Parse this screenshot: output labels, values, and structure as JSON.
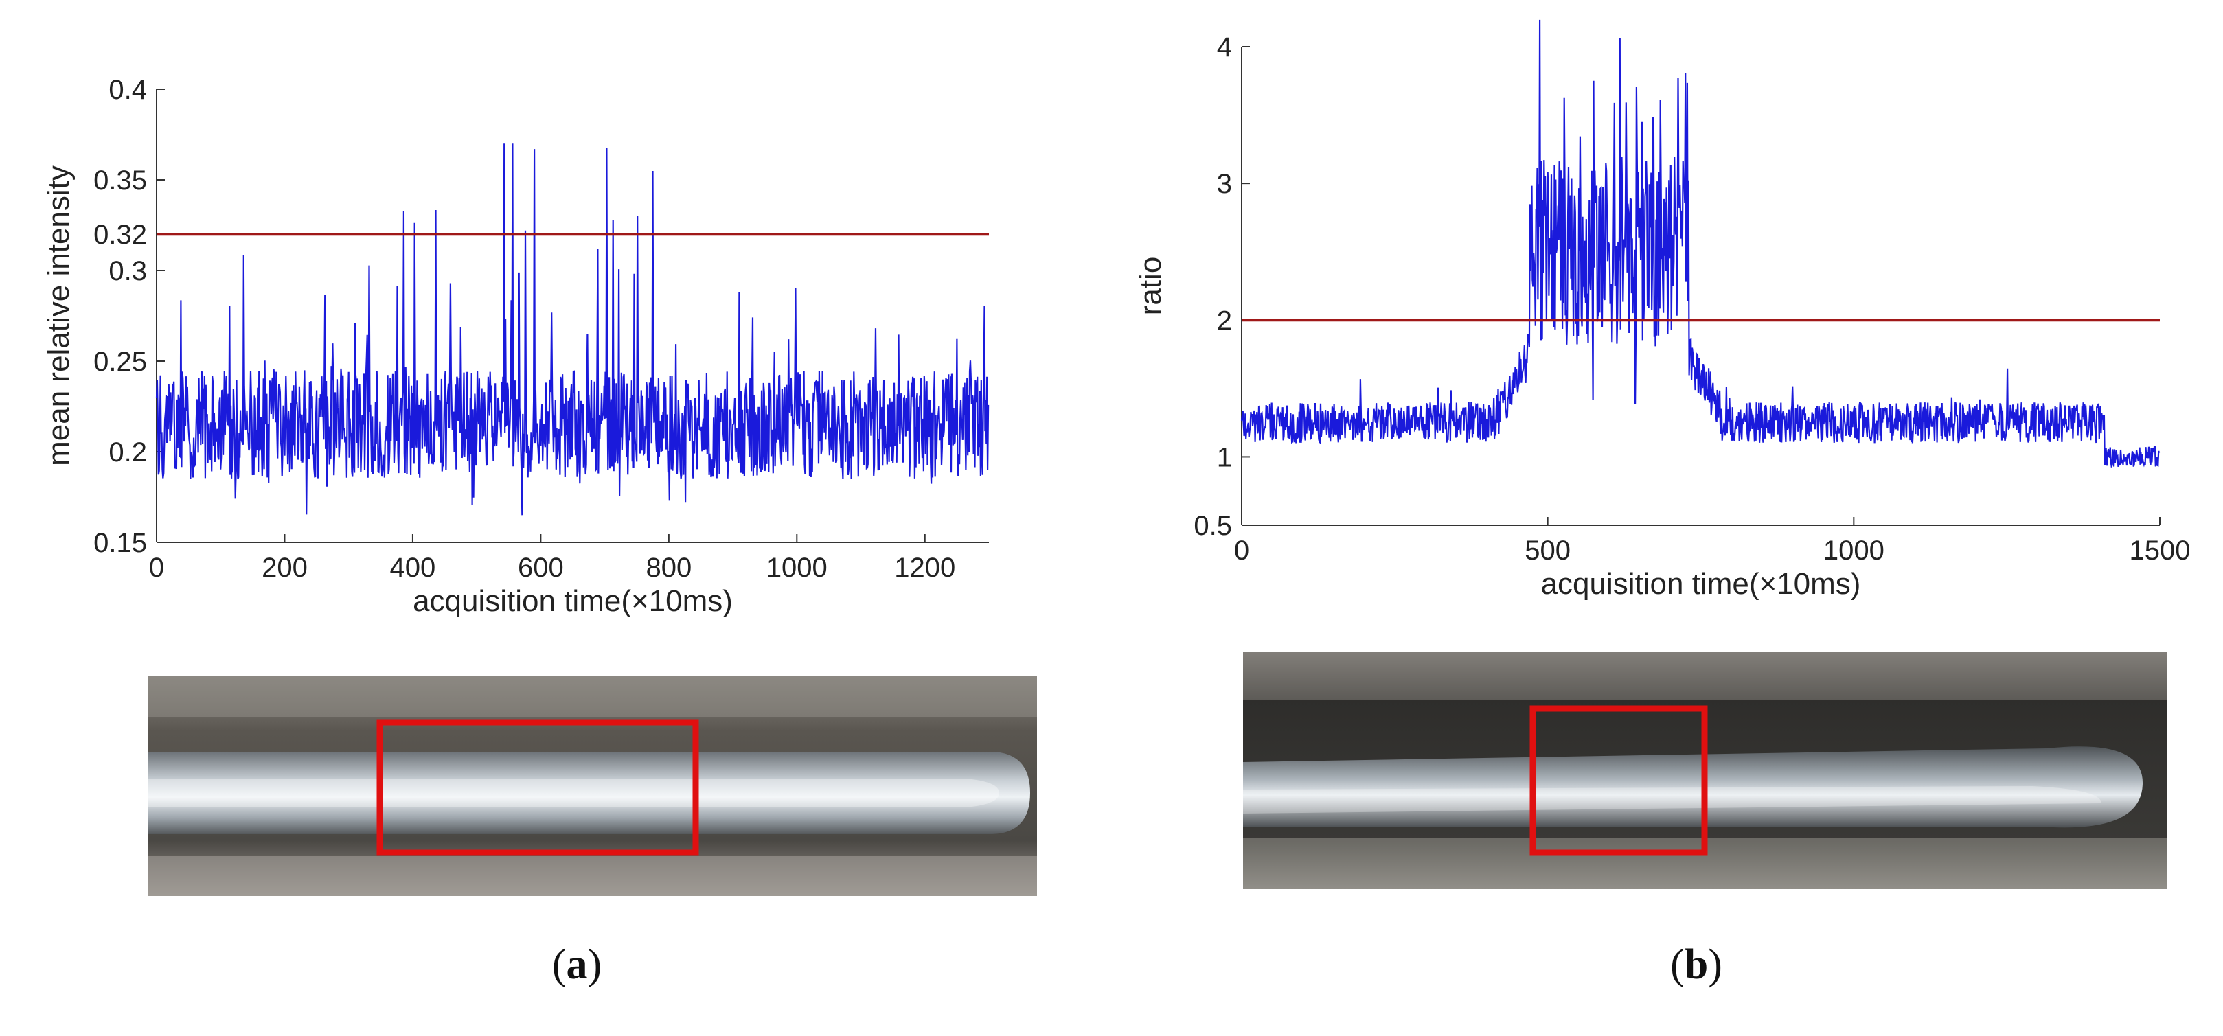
{
  "chart_data": [
    {
      "type": "line",
      "panel": "a",
      "xlabel": "acquisition time(×10ms)",
      "ylabel": "mean relative intensity",
      "xlim": [
        0,
        1300
      ],
      "ylim": [
        0.15,
        0.4
      ],
      "xticks": [
        "0",
        "200",
        "400",
        "600",
        "800",
        "1000",
        "1200"
      ],
      "xtick_values": [
        0,
        200,
        400,
        600,
        800,
        1000,
        1200
      ],
      "yticks": [
        "0.15",
        "0.2",
        "0.25",
        "0.3",
        "0.32",
        "0.35",
        "0.4"
      ],
      "ytick_values": [
        0.15,
        0.2,
        0.25,
        0.3,
        0.32,
        0.35,
        0.4
      ],
      "threshold": 0.32,
      "line_color": "#1a1adb",
      "threshold_color": "#a01818",
      "series_summary": {
        "n_points": 1300,
        "baseline": 0.215,
        "noise_range": [
          0.16,
          0.37
        ],
        "max_peak": 0.367,
        "max_peak_x": 590,
        "high_activity_x": [
          330,
          810
        ]
      }
    },
    {
      "type": "line",
      "panel": "b",
      "xlabel": "acquisition time(×10ms)",
      "ylabel": "ratio",
      "xlim": [
        0,
        1500
      ],
      "ylim": [
        0.5,
        4
      ],
      "xticks": [
        "0",
        "500",
        "1000",
        "1500"
      ],
      "xtick_values": [
        0,
        500,
        1000,
        1500
      ],
      "yticks": [
        "0.5",
        "1",
        "2",
        "3",
        "4"
      ],
      "ytick_values": [
        0.5,
        1,
        2,
        3,
        4
      ],
      "threshold": 2,
      "line_color": "#1a1adb",
      "threshold_color": "#a01818",
      "series_summary": {
        "n_points": 1500,
        "baseline": 1.25,
        "burst_x": [
          470,
          730
        ],
        "burst_level": 2.5,
        "max_peak": 3.75,
        "max_peak_x": 575,
        "tail_drop_x": 1410,
        "tail_level": 1.0
      }
    }
  ],
  "panels": {
    "a_label": "a",
    "b_label": "b"
  },
  "photos": {
    "box_color": "#e01010"
  }
}
